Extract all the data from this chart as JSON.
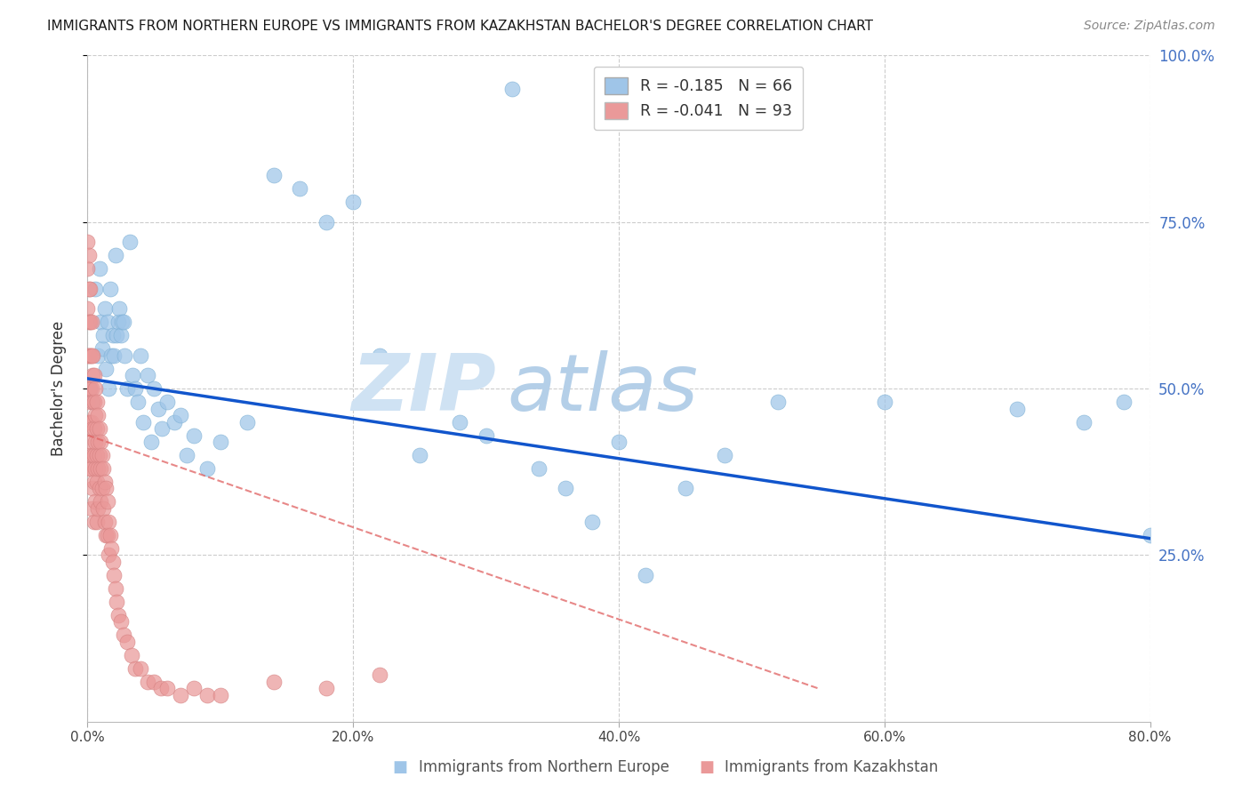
{
  "title": "IMMIGRANTS FROM NORTHERN EUROPE VS IMMIGRANTS FROM KAZAKHSTAN BACHELOR'S DEGREE CORRELATION CHART",
  "source": "Source: ZipAtlas.com",
  "ylabel": "Bachelor's Degree",
  "legend_label1": "Immigrants from Northern Europe",
  "legend_label2": "Immigrants from Kazakhstan",
  "R1": "-0.185",
  "N1": "66",
  "R2": "-0.041",
  "N2": "93",
  "xlim": [
    0.0,
    0.8
  ],
  "ylim": [
    0.0,
    1.0
  ],
  "xtick_labels": [
    "0.0%",
    "20.0%",
    "40.0%",
    "60.0%",
    "80.0%"
  ],
  "xtick_values": [
    0.0,
    0.2,
    0.4,
    0.6,
    0.8
  ],
  "ytick_labels": [
    "25.0%",
    "50.0%",
    "75.0%",
    "100.0%"
  ],
  "ytick_values": [
    0.25,
    0.5,
    0.75,
    1.0
  ],
  "color_blue": "#9fc5e8",
  "color_pink": "#ea9999",
  "color_blue_line": "#1155cc",
  "color_pink_line": "#e06060",
  "watermark_zip_color": "#cfe2f3",
  "watermark_atlas_color": "#b4cfe8",
  "blue_points_x": [
    0.002,
    0.004,
    0.006,
    0.008,
    0.009,
    0.01,
    0.011,
    0.012,
    0.013,
    0.014,
    0.015,
    0.016,
    0.017,
    0.018,
    0.019,
    0.02,
    0.021,
    0.022,
    0.023,
    0.024,
    0.025,
    0.026,
    0.027,
    0.028,
    0.03,
    0.032,
    0.034,
    0.036,
    0.038,
    0.04,
    0.042,
    0.045,
    0.048,
    0.05,
    0.053,
    0.056,
    0.06,
    0.065,
    0.07,
    0.075,
    0.08,
    0.09,
    0.1,
    0.12,
    0.14,
    0.16,
    0.18,
    0.2,
    0.22,
    0.25,
    0.28,
    0.3,
    0.32,
    0.34,
    0.36,
    0.38,
    0.4,
    0.42,
    0.45,
    0.48,
    0.52,
    0.6,
    0.7,
    0.75,
    0.78,
    0.8
  ],
  "blue_points_y": [
    0.5,
    0.48,
    0.65,
    0.55,
    0.68,
    0.6,
    0.56,
    0.58,
    0.62,
    0.53,
    0.6,
    0.5,
    0.65,
    0.55,
    0.58,
    0.55,
    0.7,
    0.58,
    0.6,
    0.62,
    0.58,
    0.6,
    0.6,
    0.55,
    0.5,
    0.72,
    0.52,
    0.5,
    0.48,
    0.55,
    0.45,
    0.52,
    0.42,
    0.5,
    0.47,
    0.44,
    0.48,
    0.45,
    0.46,
    0.4,
    0.43,
    0.38,
    0.42,
    0.45,
    0.82,
    0.8,
    0.75,
    0.78,
    0.55,
    0.4,
    0.45,
    0.43,
    0.95,
    0.38,
    0.35,
    0.3,
    0.42,
    0.22,
    0.35,
    0.4,
    0.48,
    0.48,
    0.47,
    0.45,
    0.48,
    0.28
  ],
  "pink_points_x": [
    0.0,
    0.0,
    0.0,
    0.0,
    0.0,
    0.001,
    0.001,
    0.001,
    0.001,
    0.001,
    0.001,
    0.001,
    0.002,
    0.002,
    0.002,
    0.002,
    0.002,
    0.002,
    0.003,
    0.003,
    0.003,
    0.003,
    0.003,
    0.003,
    0.003,
    0.004,
    0.004,
    0.004,
    0.004,
    0.004,
    0.004,
    0.005,
    0.005,
    0.005,
    0.005,
    0.005,
    0.005,
    0.006,
    0.006,
    0.006,
    0.006,
    0.006,
    0.007,
    0.007,
    0.007,
    0.007,
    0.007,
    0.008,
    0.008,
    0.008,
    0.008,
    0.009,
    0.009,
    0.009,
    0.01,
    0.01,
    0.01,
    0.011,
    0.011,
    0.012,
    0.012,
    0.013,
    0.013,
    0.014,
    0.014,
    0.015,
    0.015,
    0.016,
    0.016,
    0.017,
    0.018,
    0.019,
    0.02,
    0.021,
    0.022,
    0.023,
    0.025,
    0.027,
    0.03,
    0.033,
    0.036,
    0.04,
    0.045,
    0.05,
    0.055,
    0.06,
    0.07,
    0.08,
    0.09,
    0.1,
    0.14,
    0.18,
    0.22
  ],
  "pink_points_y": [
    0.72,
    0.68,
    0.62,
    0.55,
    0.48,
    0.7,
    0.65,
    0.6,
    0.55,
    0.5,
    0.45,
    0.38,
    0.65,
    0.6,
    0.55,
    0.5,
    0.45,
    0.4,
    0.6,
    0.55,
    0.5,
    0.45,
    0.42,
    0.38,
    0.32,
    0.55,
    0.52,
    0.48,
    0.44,
    0.4,
    0.35,
    0.52,
    0.48,
    0.44,
    0.4,
    0.36,
    0.3,
    0.5,
    0.46,
    0.42,
    0.38,
    0.33,
    0.48,
    0.44,
    0.4,
    0.36,
    0.3,
    0.46,
    0.42,
    0.38,
    0.32,
    0.44,
    0.4,
    0.35,
    0.42,
    0.38,
    0.33,
    0.4,
    0.35,
    0.38,
    0.32,
    0.36,
    0.3,
    0.35,
    0.28,
    0.33,
    0.28,
    0.3,
    0.25,
    0.28,
    0.26,
    0.24,
    0.22,
    0.2,
    0.18,
    0.16,
    0.15,
    0.13,
    0.12,
    0.1,
    0.08,
    0.08,
    0.06,
    0.06,
    0.05,
    0.05,
    0.04,
    0.05,
    0.04,
    0.04,
    0.06,
    0.05,
    0.07
  ],
  "blue_line_x": [
    0.0,
    0.8
  ],
  "blue_line_y": [
    0.515,
    0.275
  ],
  "pink_line_x": [
    0.0,
    0.55
  ],
  "pink_line_y": [
    0.43,
    0.05
  ]
}
